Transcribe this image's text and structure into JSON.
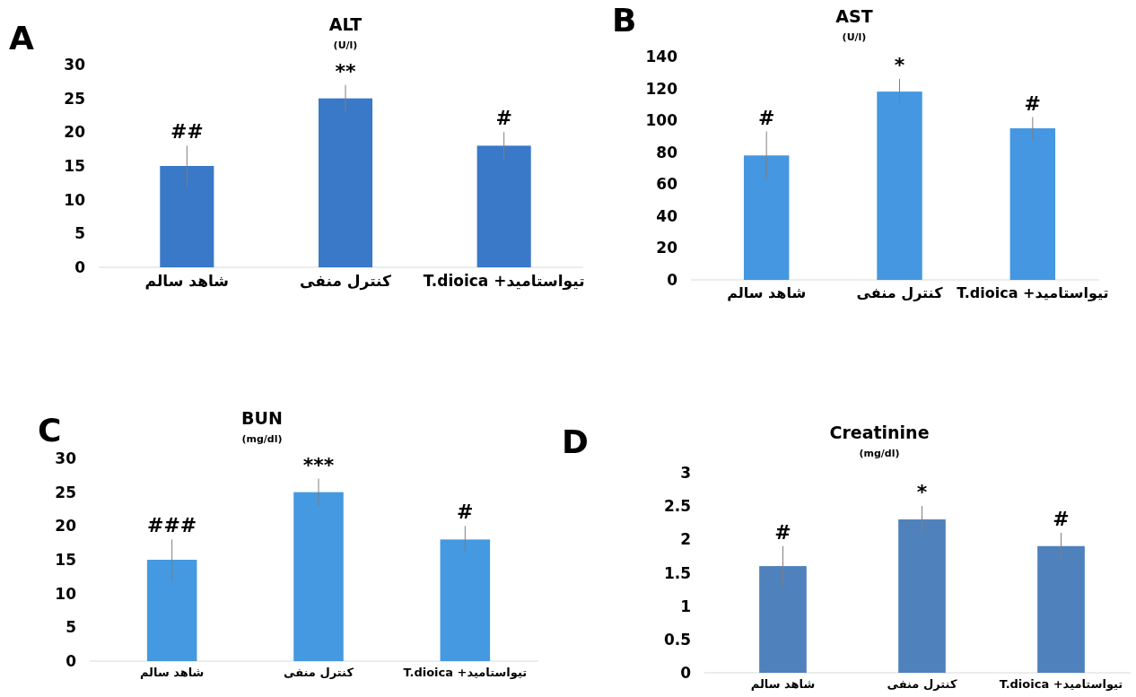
{
  "chart_data": [
    {
      "type": "bar",
      "title": "ALT",
      "subtitle": "(U/l)",
      "categories": [
        "شاهد سالم",
        "کنترل منفی",
        "تیواستامید+ T.dioica"
      ],
      "values": [
        15,
        25,
        18
      ],
      "errors": [
        3,
        2,
        2
      ],
      "color": "#3a78c8",
      "ylim": [
        0,
        30
      ],
      "yticks": [
        0,
        5,
        10,
        15,
        20,
        25,
        30
      ],
      "grid": false,
      "annotations": [
        "A",
        "##",
        "**",
        "#"
      ]
    },
    {
      "type": "bar",
      "title": "AST",
      "subtitle": "(U/l)",
      "categories": [
        "شاهد سالم",
        "کنترل منفی",
        "تیواستامید+ T.dioica"
      ],
      "values": [
        78,
        118,
        95
      ],
      "errors": [
        15,
        8,
        7
      ],
      "color": "#4497e0",
      "ylim": [
        0,
        140
      ],
      "yticks": [
        0,
        20,
        40,
        60,
        80,
        100,
        120,
        140
      ],
      "grid": false,
      "annotations": [
        "B",
        "#",
        "*",
        "#"
      ]
    },
    {
      "type": "bar",
      "title": "BUN",
      "subtitle": "(mg/dl)",
      "categories": [
        "شاهد سالم",
        "کنترل منفی",
        "تیواستامید+ T.dioica"
      ],
      "values": [
        15,
        25,
        18
      ],
      "errors": [
        3,
        2,
        2
      ],
      "color": "#4499e0",
      "ylim": [
        0,
        30
      ],
      "yticks": [
        0,
        5,
        10,
        15,
        20,
        25,
        30
      ],
      "grid": false,
      "annotations": [
        "C",
        "###",
        "***",
        "#"
      ]
    },
    {
      "type": "bar",
      "title": "Creatinine",
      "subtitle": "(mg/dl)",
      "categories": [
        "شاهد سالم",
        "کنترل منفی",
        "تیواستامید+ T.dioica"
      ],
      "values": [
        1.6,
        2.3,
        1.9
      ],
      "errors": [
        0.3,
        0.2,
        0.2
      ],
      "color": "#4f81bd",
      "ylim": [
        0,
        3
      ],
      "yticks": [
        0,
        0.5,
        1,
        1.5,
        2,
        2.5,
        3
      ],
      "grid": false,
      "annotations": [
        "D",
        "#",
        "*",
        "#"
      ]
    }
  ]
}
